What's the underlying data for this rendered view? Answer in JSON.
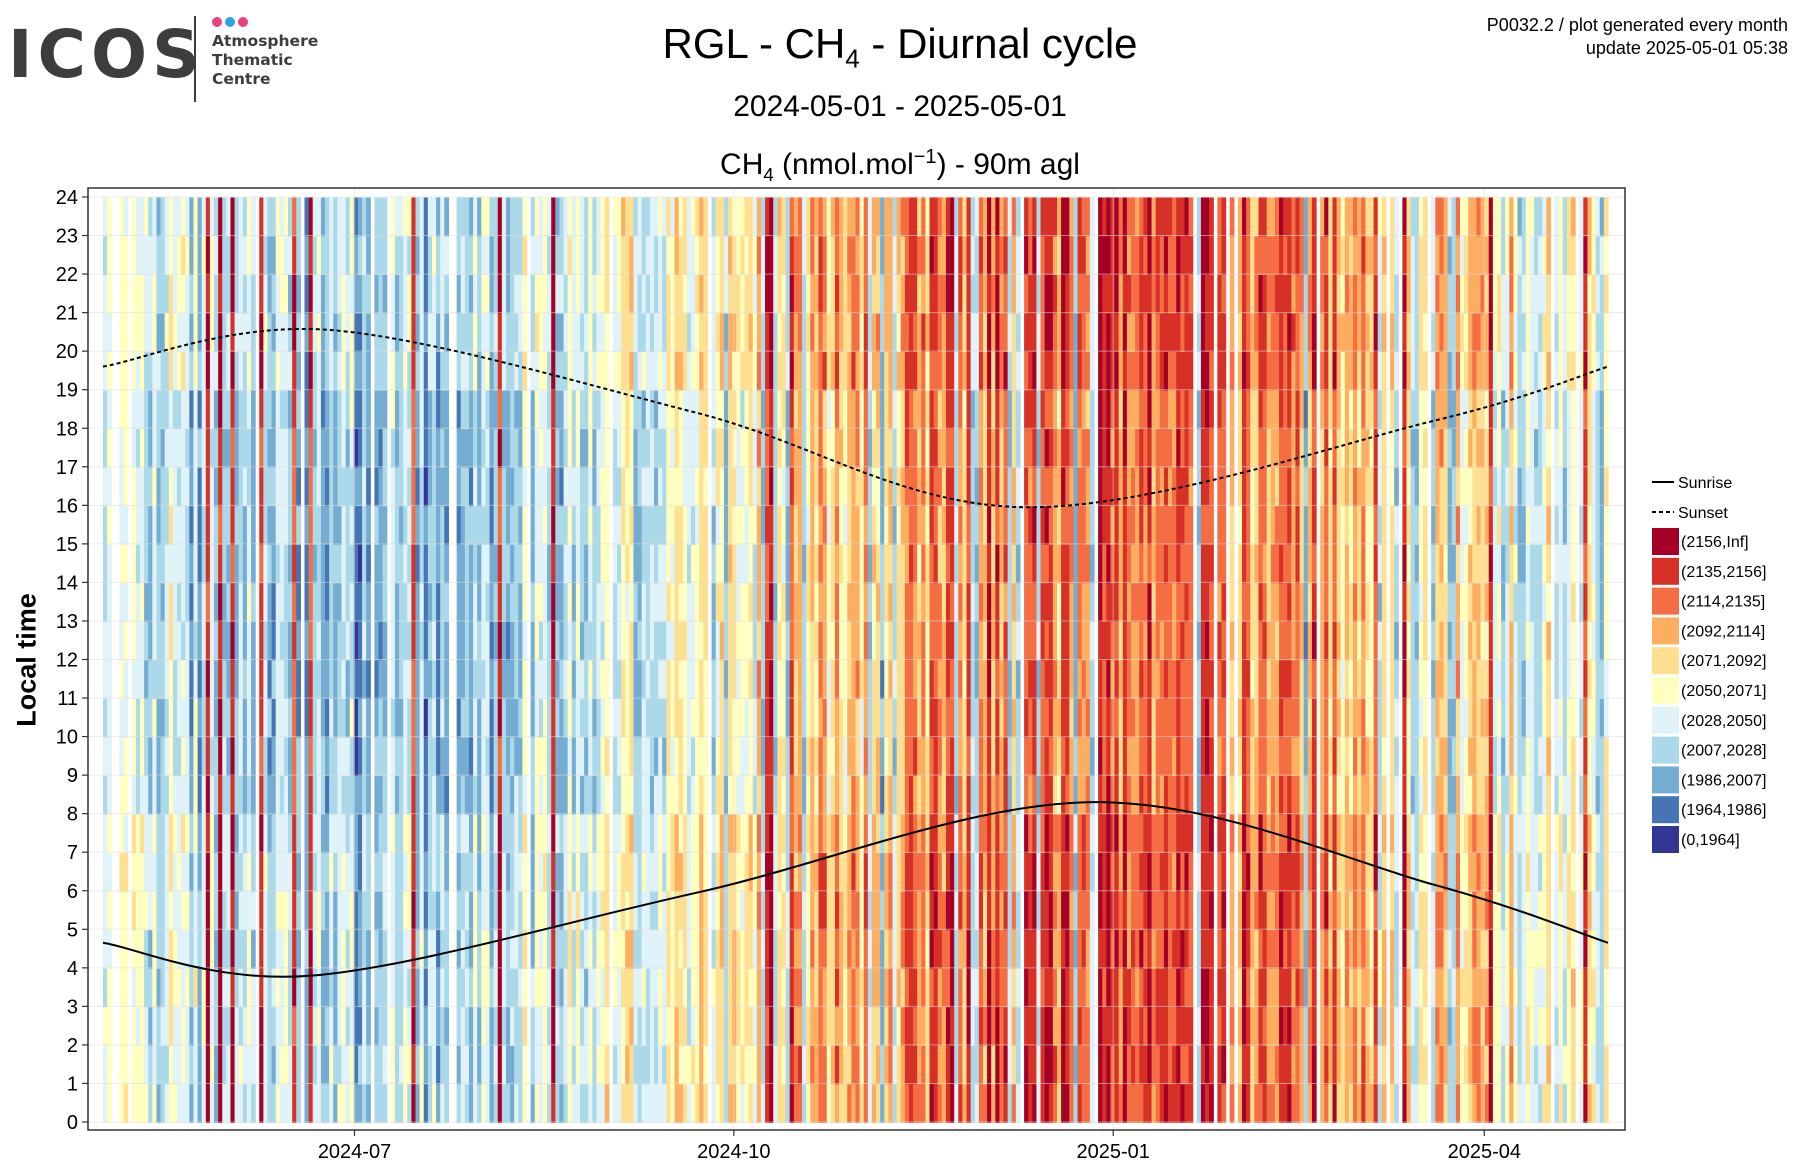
{
  "logo": {
    "word": "ICOS",
    "lines": [
      "Atmosphere",
      "Thematic",
      "Centre"
    ],
    "dot_colors": [
      "#e8417f",
      "#2ea4e8",
      "#e8417f"
    ]
  },
  "header": {
    "title_main": "RGL - CH",
    "title_sub": "4",
    "title_rest": " - Diurnal cycle",
    "date_range": "2024-05-01 - 2025-05-01",
    "plot_title_main": "CH",
    "plot_title_sub": "4",
    "plot_title_unit": " (nmol.mol",
    "plot_title_sup": "−1",
    "plot_title_rest": ") - 90m agl"
  },
  "info": {
    "line1": "P0032.2 / plot generated every month",
    "line2": "update  2025-05-01 05:38"
  },
  "chart_data": {
    "type": "heatmap",
    "ylabel": "Local time",
    "x_range": [
      "2024-05-01",
      "2025-05-01"
    ],
    "y_range": [
      0,
      24
    ],
    "x_ticks": [
      {
        "date": "2024-07-01",
        "label": "2024-07"
      },
      {
        "date": "2024-10-01",
        "label": "2024-10"
      },
      {
        "date": "2025-01-01",
        "label": "2025-01"
      },
      {
        "date": "2025-04-01",
        "label": "2025-04"
      }
    ],
    "y_ticks": [
      0,
      1,
      2,
      3,
      4,
      5,
      6,
      7,
      8,
      9,
      10,
      11,
      12,
      13,
      14,
      15,
      16,
      17,
      18,
      19,
      20,
      21,
      22,
      23,
      24
    ],
    "color_bins": [
      {
        "label": "(2156,Inf]",
        "color": "#a50026"
      },
      {
        "label": "(2135,2156]",
        "color": "#d73027"
      },
      {
        "label": "(2114,2135]",
        "color": "#f46d43"
      },
      {
        "label": "(2092,2114]",
        "color": "#fdae61"
      },
      {
        "label": "(2071,2092]",
        "color": "#fee090"
      },
      {
        "label": "(2050,2071]",
        "color": "#ffffbf"
      },
      {
        "label": "(2028,2050]",
        "color": "#e0f3f8"
      },
      {
        "label": "(2007,2028]",
        "color": "#abd9e9"
      },
      {
        "label": "(1986,2007]",
        "color": "#74add1"
      },
      {
        "label": "(1964,1986]",
        "color": "#4575b4"
      },
      {
        "label": "(0,1964]",
        "color": "#313695"
      }
    ],
    "series": [
      {
        "name": "Sunrise",
        "style": "solid",
        "x": [
          "2024-05-01",
          "2024-06-21",
          "2024-09-22",
          "2024-12-27",
          "2025-03-20",
          "2025-05-01"
        ],
        "y": [
          4.65,
          3.8,
          5.95,
          8.3,
          6.15,
          4.65
        ]
      },
      {
        "name": "Sunset",
        "style": "dashed",
        "x": [
          "2024-05-01",
          "2024-06-25",
          "2024-09-22",
          "2024-12-11",
          "2025-03-20",
          "2025-05-01"
        ],
        "y": [
          19.6,
          20.55,
          18.4,
          15.95,
          18.2,
          19.6
        ]
      }
    ],
    "grid": true,
    "legend_position": "right"
  }
}
